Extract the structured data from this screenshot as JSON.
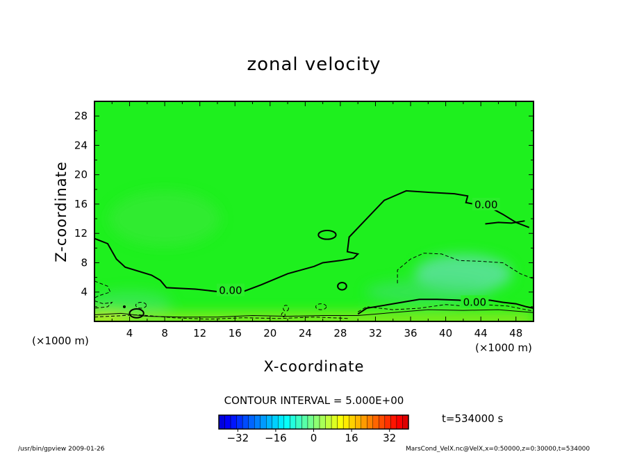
{
  "title": "zonal velocity",
  "x_axis": {
    "label": "X-coordinate",
    "unit": "(×1000 m)",
    "ticks": [
      "4",
      "8",
      "12",
      "16",
      "20",
      "24",
      "28",
      "32",
      "36",
      "40",
      "44",
      "48"
    ]
  },
  "y_axis": {
    "label": "Z-coordinate",
    "unit": "(×1000 m)",
    "ticks": [
      "4",
      "8",
      "12",
      "16",
      "20",
      "24",
      "28"
    ]
  },
  "contour_interval": "CONTOUR INTERVAL = 5.000E+00",
  "time": "t=534000 s",
  "footer_left": "/usr/bin/gpview   2009-01-26",
  "footer_right": "MarsCond_VelX.nc@VelX,x=0:50000,z=0:30000,t=534000",
  "colorbar": {
    "ticks": [
      "−32",
      "−16",
      "0",
      "16",
      "32"
    ],
    "tick_values": [
      -32,
      -16,
      0,
      16,
      32
    ],
    "min": -40,
    "max": 40,
    "step": 2.5
  },
  "colors": {
    "field": "#1ef01e",
    "frame": "#000000"
  },
  "chart_data": {
    "type": "heatmap",
    "title": "zonal velocity",
    "xlabel": "X-coordinate",
    "ylabel": "Z-coordinate",
    "xlim": [
      0,
      50
    ],
    "ylim": [
      0,
      30
    ],
    "x_unit": "×1000 m",
    "y_unit": "×1000 m",
    "contour_interval": 5.0,
    "contour_labels": [
      "0.00",
      "0.00",
      "0.00"
    ],
    "time": "t=534000 s",
    "colorbar_range": [
      -40,
      40
    ],
    "zero_contour": [
      [
        [
          0,
          11.3
        ],
        [
          1.5,
          10.6
        ],
        [
          2.5,
          8.5
        ],
        [
          3.5,
          7.4
        ],
        [
          6.5,
          6.3
        ],
        [
          7.5,
          5.6
        ],
        [
          8.2,
          4.6
        ],
        [
          11.5,
          4.4
        ],
        [
          14.5,
          4.0
        ],
        [
          17,
          4.1
        ],
        [
          19,
          5.0
        ],
        [
          22,
          6.5
        ],
        [
          25,
          7.5
        ],
        [
          26,
          8.0
        ],
        [
          28,
          8.3
        ],
        [
          29.5,
          8.6
        ],
        [
          30,
          9.2
        ],
        [
          28.8,
          9.5
        ],
        [
          29,
          11.5
        ],
        [
          31,
          14.0
        ],
        [
          33,
          16.5
        ],
        [
          35.5,
          17.8
        ],
        [
          38,
          17.6
        ],
        [
          41,
          17.4
        ],
        [
          42.5,
          17.1
        ],
        [
          42.3,
          16.2
        ],
        [
          43.2,
          16.0
        ],
        [
          44.5,
          15.9
        ],
        [
          46.5,
          14.6
        ],
        [
          48,
          13.5
        ],
        [
          49.5,
          12.8
        ]
      ],
      [
        [
          30,
          1.0
        ],
        [
          31,
          1.8
        ],
        [
          33,
          2.2
        ],
        [
          35,
          2.6
        ],
        [
          37,
          3.0
        ],
        [
          39,
          3.0
        ],
        [
          41.5,
          2.9
        ],
        [
          43,
          2.7
        ],
        [
          45,
          2.9
        ],
        [
          46.5,
          2.6
        ],
        [
          48,
          2.4
        ],
        [
          49.2,
          2.0
        ],
        [
          50,
          1.8
        ]
      ],
      [
        [
          44.5,
          13.3
        ],
        [
          46,
          13.5
        ],
        [
          47.5,
          13.4
        ],
        [
          49,
          13.7
        ]
      ]
    ]
  }
}
